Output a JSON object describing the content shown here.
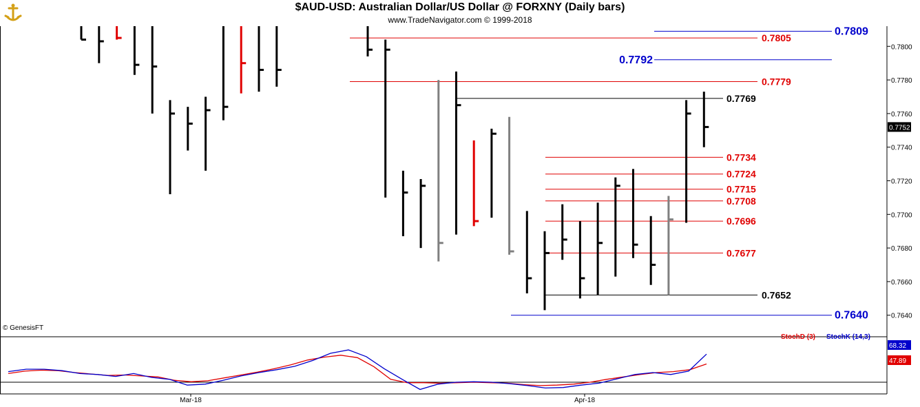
{
  "header": {
    "title": "$AUD-USD:  Australian Dollar/US Dollar @ FORXNY  (Daily bars)",
    "subtitle": "www.TradeNavigator.com © 1999-2018"
  },
  "copyright": "© GenesisFT",
  "colors": {
    "up_bar": "#000000",
    "down_bar": "#000000",
    "red_bar": "#e00000",
    "gray_bar": "#808080",
    "red_level": "#e00000",
    "blue_level": "#0000cc",
    "black_level": "#000000",
    "stoch_d": "#e00000",
    "stoch_k": "#0000cc"
  },
  "chart_data": [
    {
      "type": "ohlc",
      "ylim": [
        0.7628,
        0.7812
      ],
      "yticks": [
        "0.7800",
        "0.7780",
        "0.7760",
        "0.7740",
        "0.7720",
        "0.7700",
        "0.7680",
        "0.7660",
        "0.7640"
      ],
      "last_price": "0.7752",
      "xticks": [
        "Mar-18",
        "Apr-18"
      ],
      "bars": [
        {
          "h": 0.7815,
          "l": 0.7804,
          "c": 0.7804,
          "color": "black"
        },
        {
          "h": 0.7815,
          "l": 0.779,
          "c": 0.7803,
          "color": "black"
        },
        {
          "h": 0.7815,
          "l": 0.7804,
          "c": 0.7805,
          "color": "red"
        },
        {
          "h": 0.7815,
          "l": 0.7783,
          "c": 0.7789,
          "color": "black"
        },
        {
          "h": 0.7815,
          "l": 0.776,
          "c": 0.7788,
          "color": "black"
        },
        {
          "h": 0.7768,
          "l": 0.7712,
          "c": 0.776,
          "color": "black"
        },
        {
          "h": 0.7764,
          "l": 0.7738,
          "c": 0.7754,
          "color": "black"
        },
        {
          "h": 0.777,
          "l": 0.7726,
          "c": 0.7762,
          "color": "black"
        },
        {
          "h": 0.7812,
          "l": 0.7756,
          "c": 0.7764,
          "color": "black"
        },
        {
          "h": 0.7815,
          "l": 0.7772,
          "c": 0.779,
          "color": "red"
        },
        {
          "h": 0.7815,
          "l": 0.7773,
          "c": 0.7786,
          "color": "black"
        },
        {
          "h": 0.7815,
          "l": 0.7776,
          "c": 0.7786,
          "color": "black"
        },
        {
          "h": 0.7812,
          "l": 0.7794,
          "c": 0.7798,
          "color": "black"
        },
        {
          "h": 0.7804,
          "l": 0.771,
          "c": 0.7798,
          "color": "black"
        },
        {
          "h": 0.7726,
          "l": 0.7687,
          "c": 0.7713,
          "color": "black"
        },
        {
          "h": 0.7721,
          "l": 0.768,
          "c": 0.7717,
          "color": "black"
        },
        {
          "h": 0.778,
          "l": 0.7672,
          "c": 0.7683,
          "color": "gray"
        },
        {
          "h": 0.7785,
          "l": 0.7688,
          "c": 0.7765,
          "color": "black"
        },
        {
          "h": 0.7744,
          "l": 0.7693,
          "c": 0.7696,
          "color": "red"
        },
        {
          "h": 0.7751,
          "l": 0.7698,
          "c": 0.7748,
          "color": "black"
        },
        {
          "h": 0.7758,
          "l": 0.7676,
          "c": 0.7678,
          "color": "gray"
        },
        {
          "h": 0.7702,
          "l": 0.7653,
          "c": 0.7662,
          "color": "black"
        },
        {
          "h": 0.769,
          "l": 0.7643,
          "c": 0.7677,
          "color": "black"
        },
        {
          "h": 0.7706,
          "l": 0.7673,
          "c": 0.7685,
          "color": "black"
        },
        {
          "h": 0.7696,
          "l": 0.765,
          "c": 0.7662,
          "color": "black"
        },
        {
          "h": 0.7707,
          "l": 0.7652,
          "c": 0.7683,
          "color": "black"
        },
        {
          "h": 0.7722,
          "l": 0.7663,
          "c": 0.7717,
          "color": "black"
        },
        {
          "h": 0.7727,
          "l": 0.7674,
          "c": 0.7682,
          "color": "black"
        },
        {
          "h": 0.7699,
          "l": 0.7658,
          "c": 0.767,
          "color": "black"
        },
        {
          "h": 0.7711,
          "l": 0.7652,
          "c": 0.7697,
          "color": "gray"
        },
        {
          "h": 0.7768,
          "l": 0.7695,
          "c": 0.776,
          "color": "black"
        },
        {
          "h": 0.7773,
          "l": 0.774,
          "c": 0.7752,
          "color": "black"
        }
      ],
      "levels": [
        {
          "value": 0.7809,
          "label": "0.7809",
          "color": "blue",
          "bold": true
        },
        {
          "value": 0.7805,
          "label": "0.7805",
          "color": "red",
          "bold": true
        },
        {
          "value": 0.7792,
          "label": "0.7792",
          "color": "blue",
          "bold": true
        },
        {
          "value": 0.7779,
          "label": "0.7779",
          "color": "red",
          "bold": true
        },
        {
          "value": 0.7769,
          "label": "0.7769",
          "color": "black",
          "bold": true
        },
        {
          "value": 0.7734,
          "label": "0.7734",
          "color": "red",
          "bold": true
        },
        {
          "value": 0.7724,
          "label": "0.7724",
          "color": "red",
          "bold": true
        },
        {
          "value": 0.7715,
          "label": "0.7715",
          "color": "red",
          "bold": true
        },
        {
          "value": 0.7708,
          "label": "0.7708",
          "color": "red",
          "bold": true
        },
        {
          "value": 0.7696,
          "label": "0.7696",
          "color": "red",
          "bold": true
        },
        {
          "value": 0.7677,
          "label": "0.7677",
          "color": "red",
          "bold": true
        },
        {
          "value": 0.7652,
          "label": "0.7652",
          "color": "black",
          "bold": true
        },
        {
          "value": 0.764,
          "label": "0.7640",
          "color": "blue",
          "bold": true
        }
      ]
    },
    {
      "type": "line",
      "title": "StochD (3)  StochK (14,3)",
      "series": [
        {
          "name": "StochD (3)",
          "current": "47.89",
          "values": [
            28,
            33,
            35,
            34,
            30,
            27,
            24,
            25,
            23,
            21,
            14,
            11,
            13,
            19,
            25,
            31,
            38,
            46,
            56,
            62,
            66,
            61,
            42,
            16,
            9,
            9,
            8,
            9,
            10,
            9,
            8,
            5,
            3,
            4,
            6,
            10,
            16,
            21,
            26,
            30,
            32,
            36,
            47.89
          ]
        },
        {
          "name": "StochK (14,3)",
          "current": "68.32",
          "values": [
            32,
            37,
            37,
            34,
            28,
            26,
            22,
            28,
            20,
            16,
            4,
            6,
            14,
            23,
            30,
            36,
            43,
            55,
            70,
            77,
            63,
            38,
            16,
            -5,
            6,
            10,
            11,
            10,
            7,
            3,
            -2,
            -1,
            4,
            8,
            17,
            26,
            30,
            26,
            33,
            68.32
          ]
        }
      ]
    }
  ]
}
